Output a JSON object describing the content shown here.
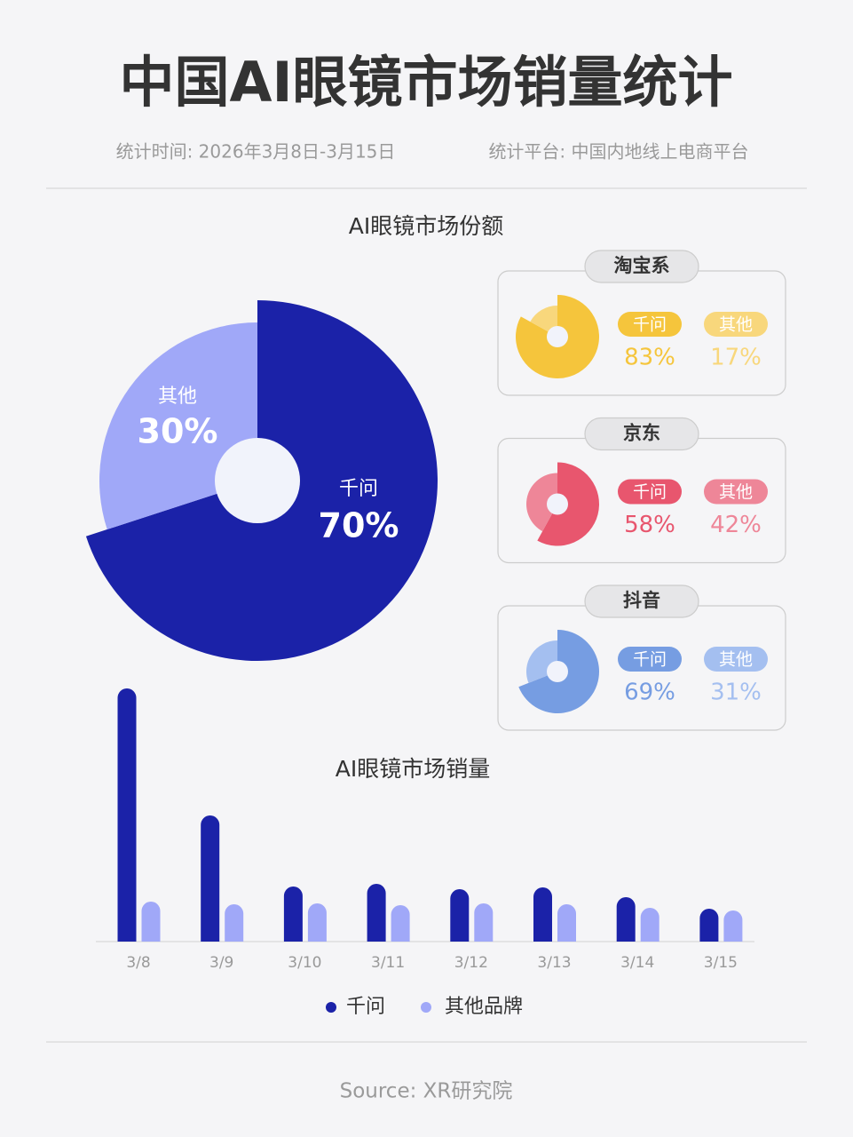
{
  "header": {
    "title": "中国AI眼镜市场销量统计",
    "period": "统计时间: 2026年3月8日-3月15日",
    "platform": "统计平台: 中国内地线上电商平台"
  },
  "chart_data": [
    {
      "type": "pie",
      "title": "AI眼镜市场份额",
      "categories": [
        "千问",
        "其他"
      ],
      "values": [
        70,
        30
      ],
      "value_labels": [
        "70%",
        "30%"
      ],
      "colors": [
        "#1b22a8",
        "#a0a8f8"
      ]
    },
    {
      "type": "pie",
      "title": "淘宝系",
      "categories": [
        "千问",
        "其他"
      ],
      "values": [
        83,
        17
      ],
      "value_labels": [
        "83%",
        "17%"
      ],
      "colors": [
        "#f5c53c",
        "#f8d77c"
      ]
    },
    {
      "type": "pie",
      "title": "京东",
      "categories": [
        "千问",
        "其他"
      ],
      "values": [
        58,
        42
      ],
      "value_labels": [
        "58%",
        "42%"
      ],
      "colors": [
        "#e8566e",
        "#ee8698"
      ]
    },
    {
      "type": "pie",
      "title": "抖音",
      "categories": [
        "千问",
        "其他"
      ],
      "values": [
        69,
        31
      ],
      "value_labels": [
        "69%",
        "31%"
      ],
      "colors": [
        "#769de2",
        "#a4bff0"
      ]
    },
    {
      "type": "bar",
      "title": "AI眼镜市场销量",
      "categories": [
        "3/8",
        "3/9",
        "3/10",
        "3/11",
        "3/12",
        "3/13",
        "3/14",
        "3/15"
      ],
      "series": [
        {
          "name": "千问",
          "color": "#1b22a8",
          "values": [
            285,
            142,
            62,
            65,
            59,
            61,
            50,
            37
          ]
        },
        {
          "name": "其他品牌",
          "color": "#a0a8f8",
          "values": [
            45,
            42,
            43,
            41,
            43,
            42,
            38,
            35
          ]
        }
      ]
    }
  ],
  "footer": {
    "source": "Source: XR研究院"
  }
}
